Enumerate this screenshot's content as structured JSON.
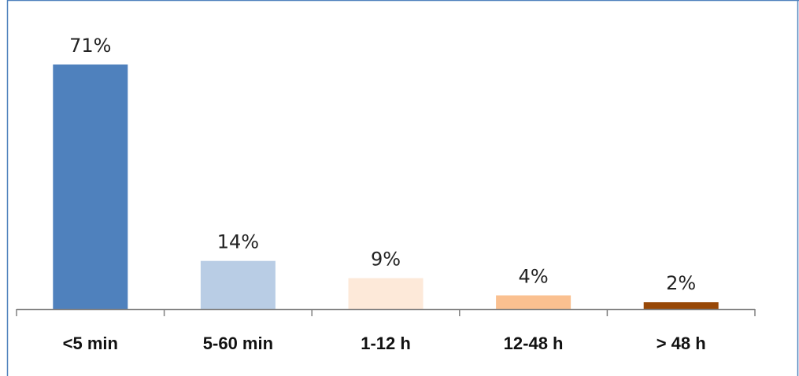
{
  "chart_data": {
    "type": "bar",
    "categories": [
      "<5 min",
      "5-60 min",
      "1-12 h",
      "12-48 h",
      "> 48 h"
    ],
    "values": [
      71,
      14,
      9,
      4,
      2
    ],
    "value_labels": [
      "71%",
      "14%",
      "9%",
      "4%",
      "2%"
    ],
    "bar_colors": [
      "#4f81bd",
      "#b9cde5",
      "#fde9d9",
      "#fac090",
      "#984807"
    ],
    "title": "",
    "xlabel": "",
    "ylabel": "",
    "ylim": [
      0,
      71
    ],
    "grid": false,
    "legend": "none"
  },
  "frame": {
    "border_color": "#4f81bd",
    "axis_color": "#808080"
  }
}
